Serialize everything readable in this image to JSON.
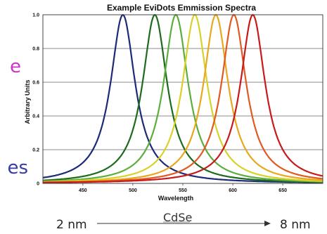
{
  "slide": {
    "text_fragment_top": "e",
    "text_fragment_bottom": "es",
    "size_min": "2 nm",
    "size_max": "8 nm",
    "material": "CdSe"
  },
  "chart_data": {
    "type": "line",
    "title": "Example EviDots Emmission Spectra",
    "xlabel": "Wavelength",
    "ylabel": "Arbitrary Units",
    "xlim": [
      410,
      690
    ],
    "ylim": [
      0,
      1.0
    ],
    "x_ticks": [
      450,
      500,
      550,
      600,
      650
    ],
    "y_ticks": [
      0,
      0.2,
      0.4,
      0.6,
      0.8,
      1.0
    ],
    "y_tick_labels": [
      "0",
      "0.2",
      "0.4",
      "0.6",
      "0.8",
      "1.0"
    ],
    "grid": "horizontal",
    "series": [
      {
        "color": "#1c2a78",
        "peak_x": 490,
        "peak_y": 1.0,
        "fwhm": 30
      },
      {
        "color": "#1e6b1e",
        "peak_x": 522,
        "peak_y": 1.0,
        "fwhm": 30
      },
      {
        "color": "#5cae3c",
        "peak_x": 543,
        "peak_y": 1.0,
        "fwhm": 30
      },
      {
        "color": "#d8d12a",
        "peak_x": 562,
        "peak_y": 1.0,
        "fwhm": 30
      },
      {
        "color": "#e8a81e",
        "peak_x": 583,
        "peak_y": 1.0,
        "fwhm": 30
      },
      {
        "color": "#e05a22",
        "peak_x": 601,
        "peak_y": 1.0,
        "fwhm": 30
      },
      {
        "color": "#c81a1a",
        "peak_x": 620,
        "peak_y": 1.0,
        "fwhm": 30
      }
    ]
  }
}
